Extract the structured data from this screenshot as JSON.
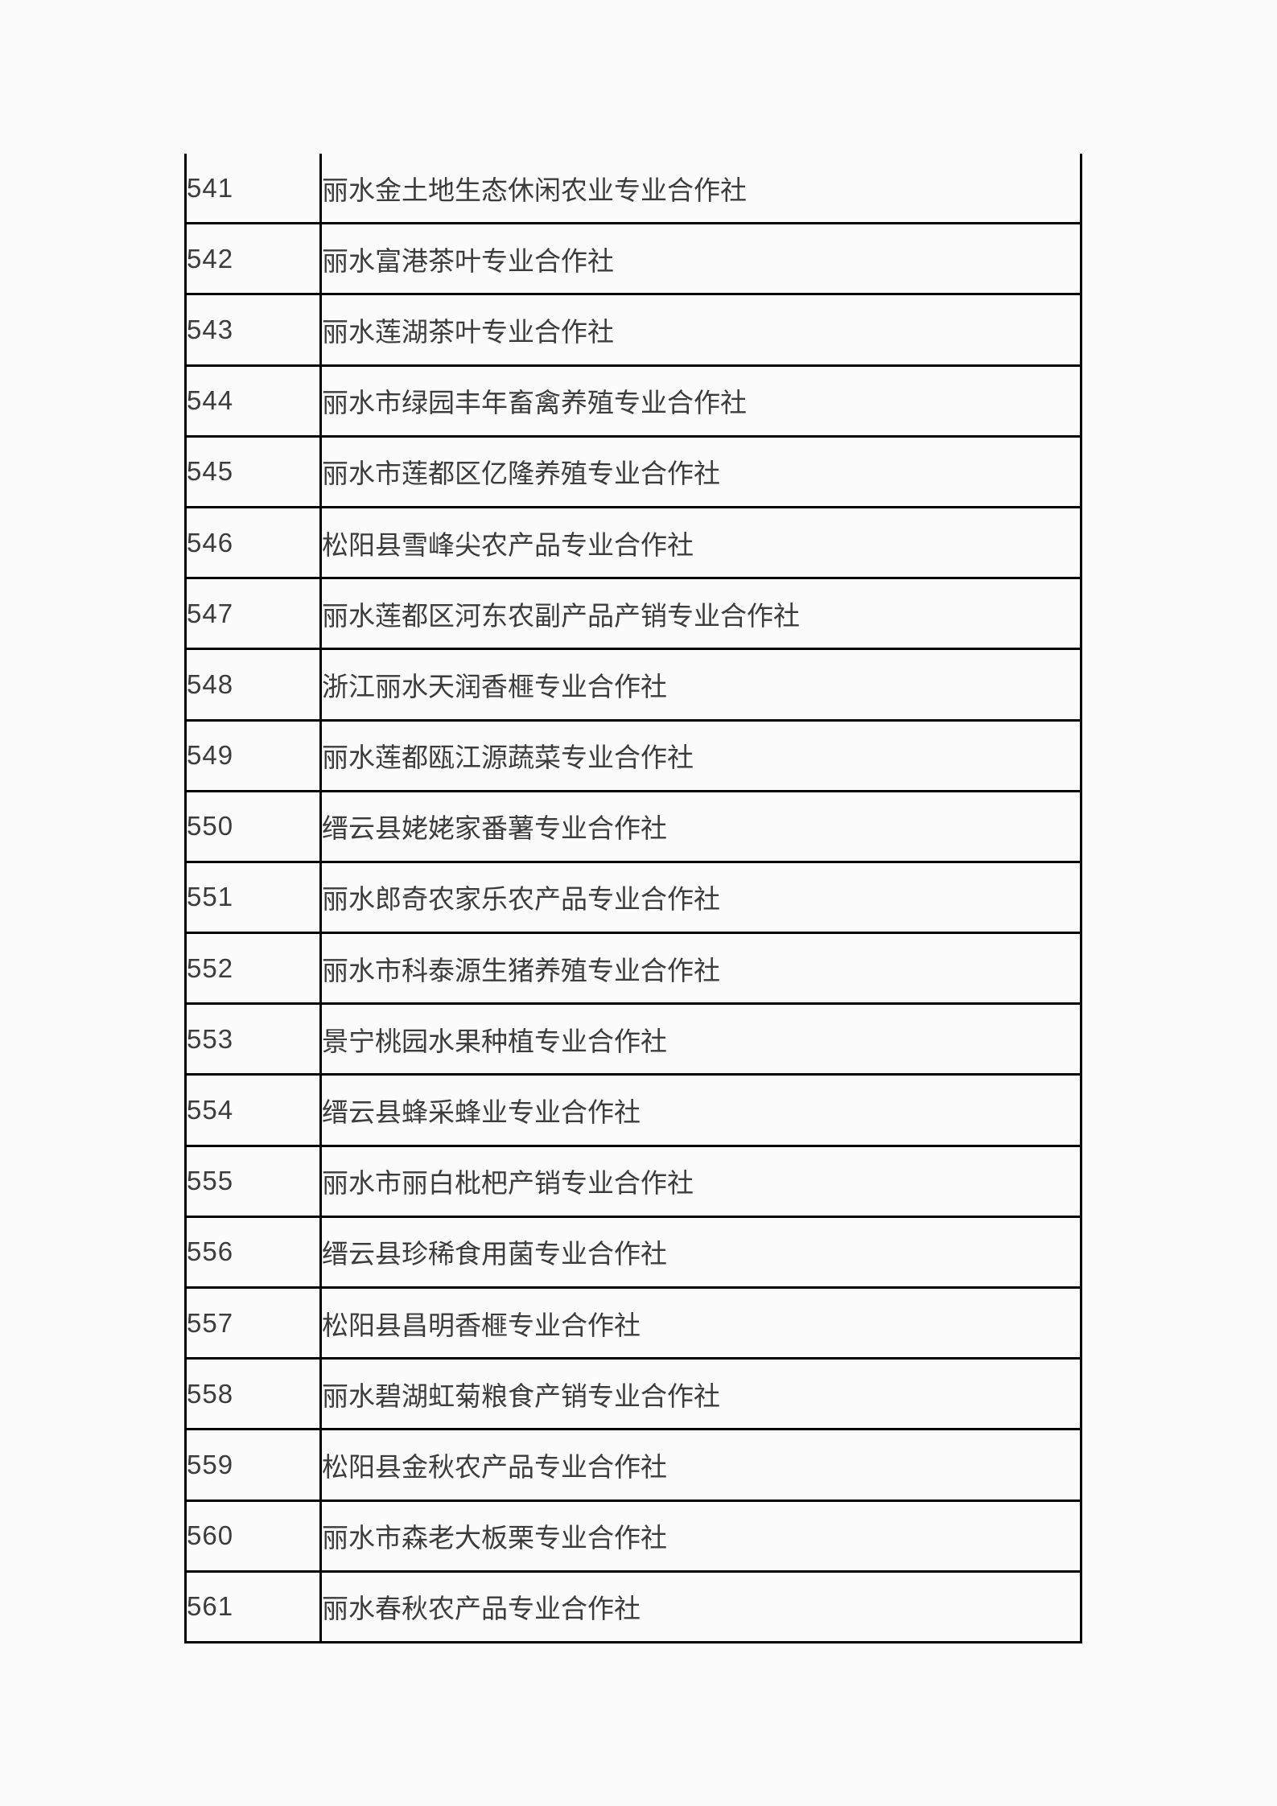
{
  "colors": {
    "page_background": "#fbfbfb",
    "table_border": "#000000",
    "text": "#3c3c3c"
  },
  "table": {
    "rows": [
      {
        "no": "541",
        "name": "丽水金土地生态休闲农业专业合作社"
      },
      {
        "no": "542",
        "name": "丽水富港茶叶专业合作社"
      },
      {
        "no": "543",
        "name": "丽水莲湖茶叶专业合作社"
      },
      {
        "no": "544",
        "name": "丽水市绿园丰年畜禽养殖专业合作社"
      },
      {
        "no": "545",
        "name": "丽水市莲都区亿隆养殖专业合作社"
      },
      {
        "no": "546",
        "name": "松阳县雪峰尖农产品专业合作社"
      },
      {
        "no": "547",
        "name": "丽水莲都区河东农副产品产销专业合作社"
      },
      {
        "no": "548",
        "name": "浙江丽水天润香榧专业合作社"
      },
      {
        "no": "549",
        "name": "丽水莲都瓯江源蔬菜专业合作社"
      },
      {
        "no": "550",
        "name": "缙云县姥姥家番薯专业合作社"
      },
      {
        "no": "551",
        "name": "丽水郎奇农家乐农产品专业合作社"
      },
      {
        "no": "552",
        "name": "丽水市科泰源生猪养殖专业合作社"
      },
      {
        "no": "553",
        "name": "景宁桃园水果种植专业合作社"
      },
      {
        "no": "554",
        "name": "缙云县蜂采蜂业专业合作社"
      },
      {
        "no": "555",
        "name": "丽水市丽白枇杷产销专业合作社"
      },
      {
        "no": "556",
        "name": "缙云县珍稀食用菌专业合作社"
      },
      {
        "no": "557",
        "name": "松阳县昌明香榧专业合作社"
      },
      {
        "no": "558",
        "name": "丽水碧湖虹菊粮食产销专业合作社"
      },
      {
        "no": "559",
        "name": "松阳县金秋农产品专业合作社"
      },
      {
        "no": "560",
        "name": "丽水市森老大板栗专业合作社"
      },
      {
        "no": "561",
        "name": "丽水春秋农产品专业合作社"
      }
    ]
  }
}
